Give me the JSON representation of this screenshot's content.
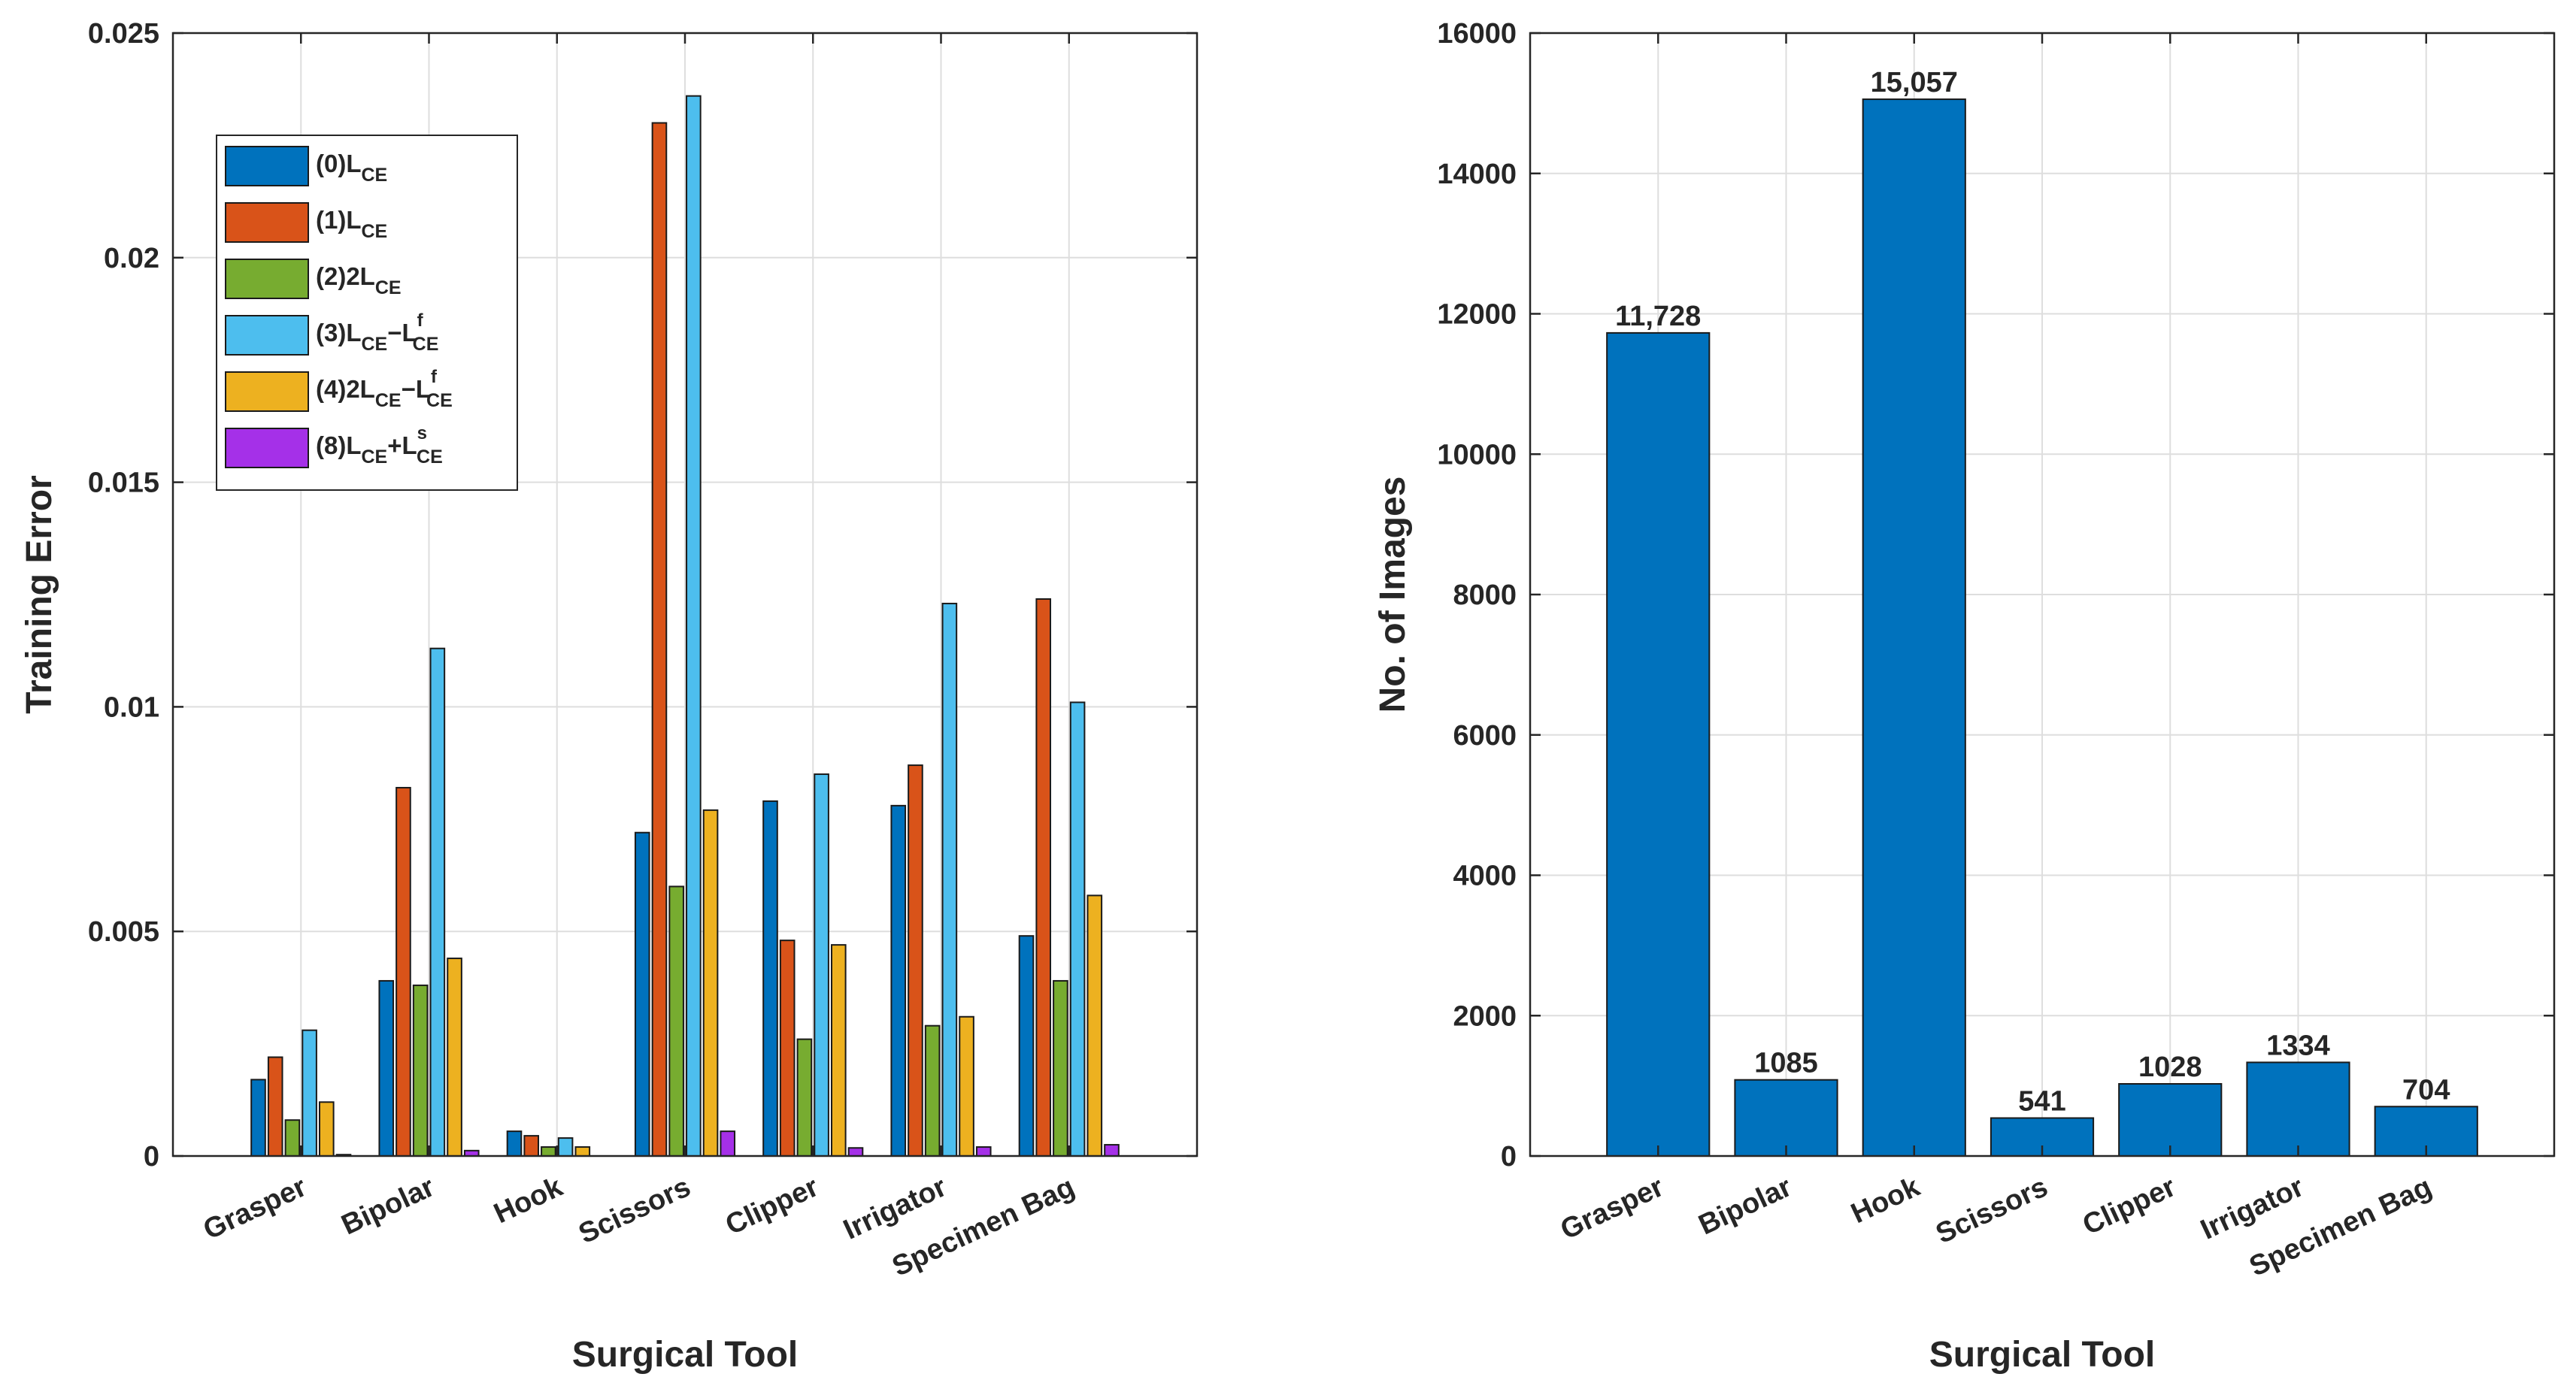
{
  "colors": {
    "series0": "#0072BD",
    "series1": "#D95319",
    "series2": "#77AC30",
    "series3": "#4DBEEE",
    "series4": "#EDB120",
    "series5": "#A530E8",
    "right_bars": "#0072BD",
    "axis": "#262626",
    "grid": "#dedede"
  },
  "chart_data": [
    {
      "type": "bar",
      "categories": [
        "Grasper",
        "Bipolar",
        "Hook",
        "Scissors",
        "Clipper",
        "Irrigator",
        "Specimen Bag"
      ],
      "xlabel": "Surgical Tool",
      "ylabel": "Training Error",
      "ylim": [
        0,
        0.025
      ],
      "yticks": [
        0,
        0.005,
        0.01,
        0.015,
        0.02,
        0.025
      ],
      "ytick_labels": [
        "0",
        "0.005",
        "0.01",
        "0.015",
        "0.02",
        "0.025"
      ],
      "grid": true,
      "legend_position": "top-left",
      "series": [
        {
          "name": "(0)L_CE",
          "label_main": "(0)L",
          "label_sub": "CE",
          "label_mid": "",
          "label_sup": "",
          "label_sub2": "",
          "values": [
            0.0017,
            0.0039,
            0.00055,
            0.0072,
            0.0079,
            0.0078,
            0.0049
          ]
        },
        {
          "name": "(1)L_CE",
          "label_main": "(1)L",
          "label_sub": "CE",
          "label_mid": "",
          "label_sup": "",
          "label_sub2": "",
          "values": [
            0.0022,
            0.0082,
            0.00045,
            0.023,
            0.0048,
            0.0087,
            0.0124
          ]
        },
        {
          "name": "(2)2L_CE",
          "label_main": "(2)2L",
          "label_sub": "CE",
          "label_mid": "",
          "label_sup": "",
          "label_sub2": "",
          "values": [
            0.0008,
            0.0038,
            0.0002,
            0.006,
            0.0026,
            0.0029,
            0.0039
          ]
        },
        {
          "name": "(3)L_CE−L^f_CE",
          "label_main": "(3)L",
          "label_sub": "CE",
          "label_mid": "−L",
          "label_sup": "f",
          "label_sub2": "CE",
          "values": [
            0.0028,
            0.0113,
            0.0004,
            0.0236,
            0.0085,
            0.0123,
            0.0101
          ]
        },
        {
          "name": "(4)2L_CE−L^f_CE",
          "label_main": "(4)2L",
          "label_sub": "CE",
          "label_mid": "−L",
          "label_sup": "f",
          "label_sub2": "CE",
          "values": [
            0.0012,
            0.0044,
            0.0002,
            0.0077,
            0.0047,
            0.0031,
            0.0058
          ]
        },
        {
          "name": "(8)L_CE+L^s_CE",
          "label_main": "(8)L",
          "label_sub": "CE",
          "label_mid": "+L",
          "label_sup": "s",
          "label_sub2": "CE",
          "values": [
            3e-05,
            0.00012,
            0.0,
            0.00055,
            0.00018,
            0.0002,
            0.00025
          ]
        }
      ]
    },
    {
      "type": "bar",
      "categories": [
        "Grasper",
        "Bipolar",
        "Hook",
        "Scissors",
        "Clipper",
        "Irrigator",
        "Specimen Bag"
      ],
      "xlabel": "Surgical Tool",
      "ylabel": "No. of Images",
      "ylim": [
        0,
        16000
      ],
      "yticks": [
        0,
        2000,
        4000,
        6000,
        8000,
        10000,
        12000,
        14000,
        16000
      ],
      "ytick_labels": [
        "0",
        "2000",
        "4000",
        "6000",
        "8000",
        "10000",
        "12000",
        "14000",
        "16000"
      ],
      "grid": true,
      "values": [
        11728,
        1085,
        15057,
        541,
        1028,
        1334,
        704
      ],
      "data_labels": [
        "11,728",
        "1085",
        "15,057",
        "541",
        "1028",
        "1334",
        "704"
      ]
    }
  ]
}
